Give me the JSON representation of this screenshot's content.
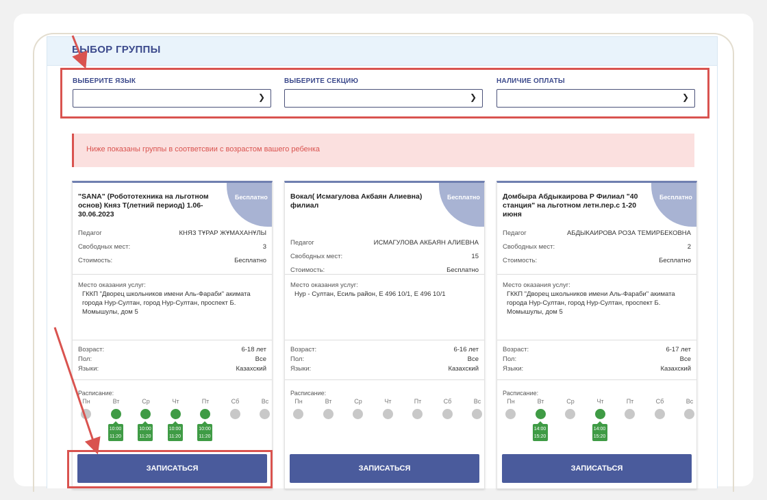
{
  "panel_title": "ВЫБОР ГРУППЫ",
  "filters": [
    {
      "label": "ВЫБЕРИТЕ ЯЗЫК",
      "value": ""
    },
    {
      "label": "ВЫБЕРИТЕ СЕКЦИЮ",
      "value": ""
    },
    {
      "label": "НАЛИЧИЕ ОПЛАТЫ",
      "value": ""
    }
  ],
  "alert": "Ниже показаны группы в соответсвии с возрастом вашего ребенка",
  "cards": [
    {
      "badge": "Бесплатно",
      "title": "\"SANA\" (Робототехника на льготном основ) Княз Т(летний период) 1.06-30.06.2023",
      "teacher_label": "Педагог",
      "teacher": "КНЯЗ ТҰРАР ЖҰМАХАНҰЛЫ",
      "seats_label": "Свободных мест:",
      "seats": "3",
      "cost_label": "Стоимость:",
      "cost": "Бесплатно",
      "place_label": "Место оказания услуг:",
      "place": "ГККП \"Дворец школьников имени Аль-Фараби\" акимата города Нур-Султан, город Нур-Султан, проспект Б. Момышулы, дом 5",
      "age_label": "Возраст:",
      "age": "6-18 лет",
      "sex_label": "Пол:",
      "sex": "Все",
      "lang_label": "Языки:",
      "lang": "Казахский",
      "schedule_label": "Расписание:",
      "days": [
        "Пн",
        "Вт",
        "Ср",
        "Чт",
        "Пт",
        "Сб",
        "Вс"
      ],
      "times": [
        "",
        "10:00 11:20",
        "10:00 11:20",
        "10:00 11:20",
        "10:00 11:20",
        "",
        ""
      ],
      "button": "ЗАПИСАТЬСЯ"
    },
    {
      "badge": "Бесплатно",
      "title": "Вокал( Исмагулова Акбаян Алиевна) филиал",
      "teacher_label": "Педагог",
      "teacher": "ИСМАГУЛОВА АКБАЯН АЛИЕВНА",
      "seats_label": "Свободных мест:",
      "seats": "15",
      "cost_label": "Стоимость:",
      "cost": "Бесплатно",
      "place_label": "Место оказания услуг:",
      "place": "Нур - Султан, Есиль район, Е 496 10/1, Е 496 10/1",
      "age_label": "Возраст:",
      "age": "6-16 лет",
      "sex_label": "Пол:",
      "sex": "Все",
      "lang_label": "Языки:",
      "lang": "Казахский",
      "schedule_label": "Расписание:",
      "days": [
        "Пн",
        "Вт",
        "Ср",
        "Чт",
        "Пт",
        "Сб",
        "Вс"
      ],
      "times": [
        "",
        "",
        "",
        "",
        "",
        "",
        ""
      ],
      "button": "ЗАПИСАТЬСЯ"
    },
    {
      "badge": "Бесплатно",
      "title": "Домбыра Абдыкаирова Р Филиал \"40 станция\" на льготном летн.пер.с 1-20 июня",
      "teacher_label": "Педагог",
      "teacher": "АБДЫКАИРОВА РОЗА ТЕМИРБЕКОВНА",
      "seats_label": "Свободных мест:",
      "seats": "2",
      "cost_label": "Стоимость:",
      "cost": "Бесплатно",
      "place_label": "Место оказания услуг:",
      "place": "ГККП \"Дворец школьников имени Аль-Фараби\" акимата города Нур-Султан, город Нур-Султан, проспект Б. Момышулы, дом 5",
      "age_label": "Возраст:",
      "age": "6-17 лет",
      "sex_label": "Пол:",
      "sex": "Все",
      "lang_label": "Языки:",
      "lang": "Казахский",
      "schedule_label": "Расписание:",
      "days": [
        "Пн",
        "Вт",
        "Ср",
        "Чт",
        "Пт",
        "Сб",
        "Вс"
      ],
      "times": [
        "",
        "14:00 15:20",
        "",
        "14:00 15:20",
        "",
        "",
        ""
      ],
      "button": "ЗАПИСАТЬСЯ"
    }
  ],
  "colors": {
    "accent": "#4a5b9c",
    "highlight": "#d9534f",
    "active_day": "#3f9b45",
    "badge": "#a8b3d3"
  }
}
